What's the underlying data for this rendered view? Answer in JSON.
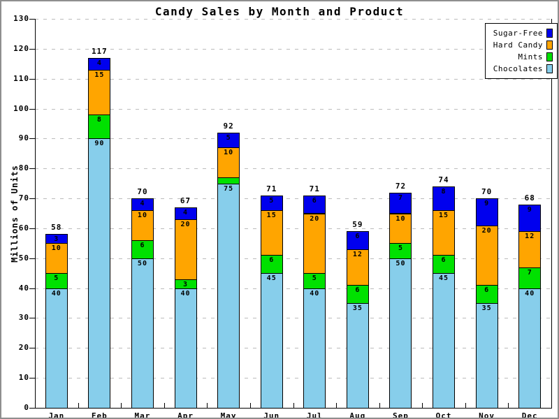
{
  "chart_data": {
    "type": "bar",
    "stacked": true,
    "title": "Candy Sales by Month and Product",
    "xlabel": "",
    "ylabel": "Millions of Units",
    "ylim": [
      0,
      130
    ],
    "y_ticks": [
      0,
      10,
      20,
      30,
      40,
      50,
      60,
      70,
      80,
      90,
      100,
      110,
      120,
      130
    ],
    "grid": "horizontal-dashed",
    "legend_position": "top-right",
    "categories": [
      "Jan",
      "Feb",
      "Mar",
      "Apr",
      "May",
      "Jun",
      "Jul",
      "Aug",
      "Sep",
      "Oct",
      "Nov",
      "Dec"
    ],
    "series": [
      {
        "name": "Chocolates",
        "color": "#87CEEB",
        "values": [
          40,
          90,
          50,
          40,
          75,
          45,
          40,
          35,
          50,
          45,
          35,
          40
        ]
      },
      {
        "name": "Mints",
        "color": "#00E100",
        "values": [
          5,
          8,
          6,
          3,
          2,
          6,
          5,
          6,
          5,
          6,
          6,
          7
        ]
      },
      {
        "name": "Hard Candy",
        "color": "#FFA500",
        "values": [
          10,
          15,
          10,
          20,
          10,
          15,
          20,
          12,
          10,
          15,
          20,
          12
        ]
      },
      {
        "name": "Sugar-Free",
        "color": "#0000EE",
        "values": [
          3,
          4,
          4,
          4,
          5,
          5,
          6,
          6,
          7,
          8,
          9,
          9
        ]
      }
    ],
    "totals": [
      58,
      117,
      70,
      67,
      92,
      71,
      71,
      59,
      72,
      74,
      70,
      68
    ],
    "legend_order": [
      "Sugar-Free",
      "Hard Candy",
      "Mints",
      "Chocolates"
    ]
  }
}
